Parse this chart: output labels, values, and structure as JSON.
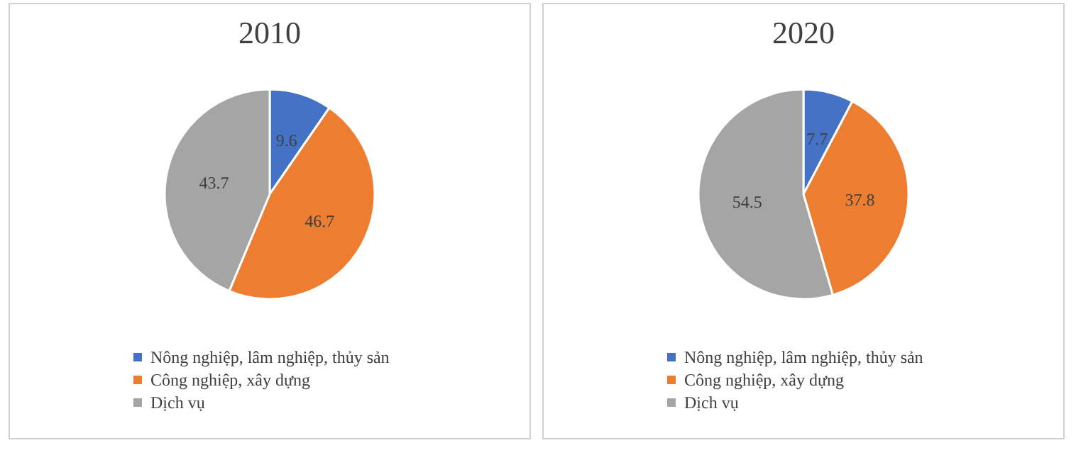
{
  "chart_data": [
    {
      "type": "pie",
      "title": "2010",
      "categories": [
        "Nông nghiệp, lâm nghiệp, thủy sản",
        "Công nghiệp, xây dựng",
        "Dịch vụ"
      ],
      "values": [
        9.6,
        46.7,
        43.7
      ],
      "colors": [
        "#4472c4",
        "#ed7d31",
        "#a5a5a5"
      ],
      "data_labels": true,
      "legend": "bottom"
    },
    {
      "type": "pie",
      "title": "2020",
      "categories": [
        "Nông nghiệp, lâm nghiệp, thủy sản",
        "Công nghiệp, xây dựng",
        "Dịch vụ"
      ],
      "values": [
        7.7,
        37.8,
        54.5
      ],
      "colors": [
        "#4472c4",
        "#ed7d31",
        "#a5a5a5"
      ],
      "data_labels": true,
      "legend": "bottom"
    }
  ]
}
